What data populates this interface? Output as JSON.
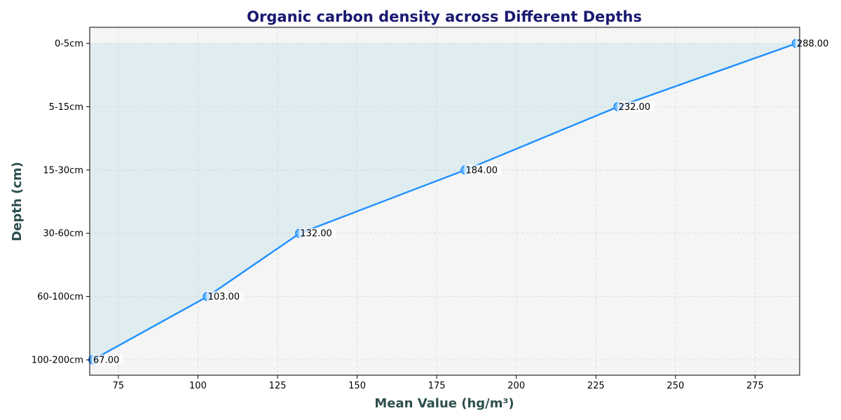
{
  "chart_data": {
    "type": "line",
    "title": "Organic carbon density across Different Depths",
    "xlabel": "Mean Value (hg/m³)",
    "ylabel": "Depth (cm)",
    "categories": [
      "0-5cm",
      "5-15cm",
      "15-30cm",
      "30-60cm",
      "60-100cm",
      "100-200cm"
    ],
    "values": [
      288,
      232,
      184,
      132,
      103,
      67
    ],
    "data_labels": [
      "288.00",
      "232.00",
      "184.00",
      "132.00",
      "103.00",
      "67.00"
    ],
    "xlim": [
      66,
      289
    ],
    "x_ticks": [
      75,
      100,
      125,
      150,
      175,
      200,
      225,
      250,
      275
    ],
    "grid": true,
    "fill_under_line": true,
    "colors": {
      "line": "#1e90ff",
      "marker": "#6ab8f7",
      "fill": "#add8e6",
      "plot_background": "#f5f5f5",
      "title": "#191970",
      "axis_label": "#2f4f4f"
    }
  }
}
